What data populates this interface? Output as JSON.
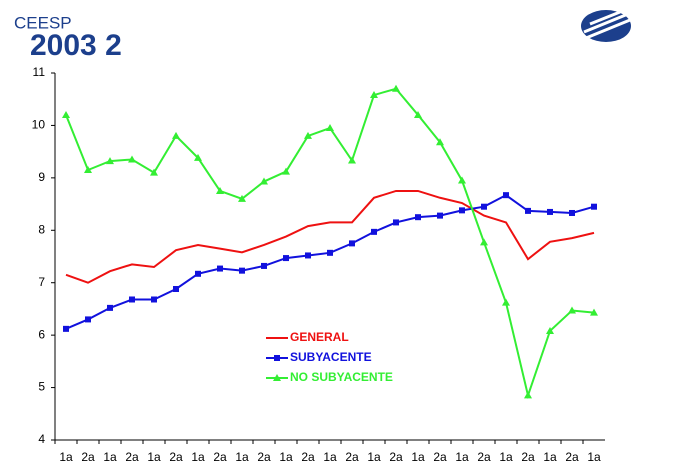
{
  "chart_data": {
    "type": "line",
    "brand": "CEESP",
    "title": "2003 2",
    "categories": [
      "1a",
      "2a",
      "1a",
      "2a",
      "1a",
      "2a",
      "1a",
      "2a",
      "1a",
      "2a",
      "1a",
      "2a",
      "1a",
      "2a",
      "1a",
      "2a",
      "1a",
      "2a",
      "1a",
      "2a",
      "1a",
      "2a",
      "1a",
      "2a",
      "1a"
    ],
    "series": [
      {
        "name": "GENERAL",
        "color": "#ee1111",
        "marker": "none",
        "values": [
          7.15,
          7.0,
          7.22,
          7.35,
          7.3,
          7.62,
          7.72,
          7.65,
          7.58,
          7.72,
          7.88,
          8.08,
          8.15,
          8.15,
          8.62,
          8.75,
          8.75,
          8.62,
          8.52,
          8.28,
          8.15,
          7.45,
          7.78,
          7.85,
          7.95
        ]
      },
      {
        "name": "SUBYACENTE",
        "color": "#1111dd",
        "marker": "square",
        "values": [
          6.12,
          6.3,
          6.52,
          6.68,
          6.68,
          6.88,
          7.17,
          7.27,
          7.23,
          7.32,
          7.47,
          7.52,
          7.57,
          7.75,
          7.97,
          8.15,
          8.25,
          8.28,
          8.38,
          8.45,
          8.67,
          8.37,
          8.35,
          8.33,
          8.45
        ]
      },
      {
        "name": "NO SUBYACENTE",
        "color": "#33ee33",
        "marker": "triangle",
        "values": [
          10.2,
          9.15,
          9.32,
          9.35,
          9.1,
          9.8,
          9.38,
          8.75,
          8.6,
          8.93,
          9.12,
          9.8,
          9.95,
          9.33,
          10.58,
          10.7,
          10.2,
          9.68,
          8.95,
          7.77,
          6.62,
          4.85,
          6.08,
          6.47,
          6.43
        ]
      }
    ],
    "ylim": [
      4,
      11
    ],
    "yticks": [
      4,
      5,
      6,
      7,
      8,
      9,
      10,
      11
    ],
    "grid": false
  }
}
